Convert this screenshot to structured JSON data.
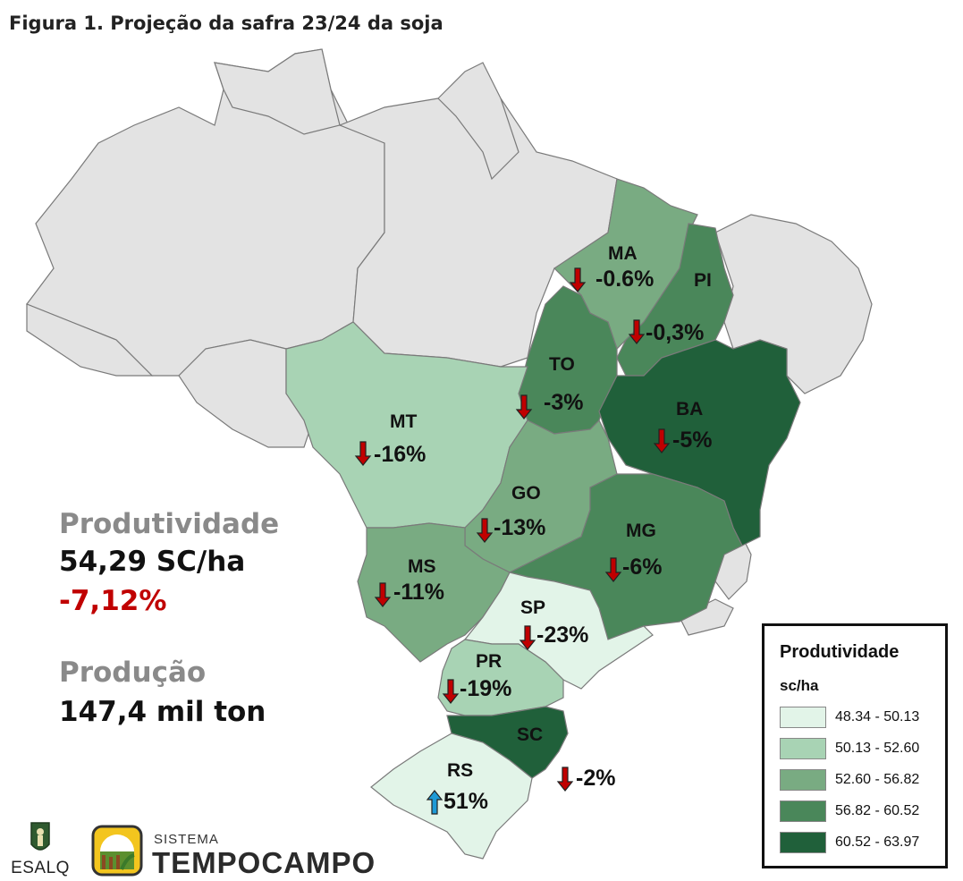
{
  "title": "Figura 1. Projeção da safra 23/24 da soja",
  "colors": {
    "class1": "#e2f4e8",
    "class2": "#a8d3b4",
    "class3": "#79ab82",
    "class4": "#4a875a",
    "class5": "#20603a",
    "no_data": "#e3e3e3",
    "arrow_down": "#c00000",
    "arrow_up": "#1e9ad6"
  },
  "states": [
    {
      "abbr": "MA",
      "change": "-0.6%",
      "class": 3,
      "direction": "down"
    },
    {
      "abbr": "PI",
      "change": "-0,3%",
      "class": 4,
      "direction": "down"
    },
    {
      "abbr": "TO",
      "change": "-3%",
      "class": 4,
      "direction": "down"
    },
    {
      "abbr": "BA",
      "change": "-5%",
      "class": 5,
      "direction": "down"
    },
    {
      "abbr": "MT",
      "change": "-16%",
      "class": 2,
      "direction": "down"
    },
    {
      "abbr": "GO",
      "change": "-13%",
      "class": 3,
      "direction": "down"
    },
    {
      "abbr": "MG",
      "change": "-6%",
      "class": 4,
      "direction": "down"
    },
    {
      "abbr": "MS",
      "change": "-11%",
      "class": 3,
      "direction": "down"
    },
    {
      "abbr": "SP",
      "change": "-23%",
      "class": 1,
      "direction": "down"
    },
    {
      "abbr": "PR",
      "change": "-19%",
      "class": 2,
      "direction": "down"
    },
    {
      "abbr": "SC",
      "change": "-2%",
      "class": 5,
      "direction": "down"
    },
    {
      "abbr": "RS",
      "change": "51%",
      "class": 1,
      "direction": "up"
    }
  ],
  "summary": {
    "productivity_label": "Produtividade",
    "productivity_value": "54,29 SC/ha",
    "productivity_change": "-7,12%",
    "production_label": "Produção",
    "production_value": "147,4 mil ton"
  },
  "legend": {
    "title": "Produtividade",
    "unit": "sc/ha",
    "classes": [
      {
        "range": "48.34 - 50.13",
        "color": "#e2f4e8"
      },
      {
        "range": "50.13 - 52.60",
        "color": "#a8d3b4"
      },
      {
        "range": "52.60 - 56.82",
        "color": "#79ab82"
      },
      {
        "range": "56.82 - 60.52",
        "color": "#4a875a"
      },
      {
        "range": "60.52 - 63.97",
        "color": "#20603a"
      }
    ]
  },
  "logos": {
    "esalq": "ESALQ",
    "tempocampo_small": "SISTEMA",
    "tempocampo_big": "TEMPOCAMPO"
  }
}
